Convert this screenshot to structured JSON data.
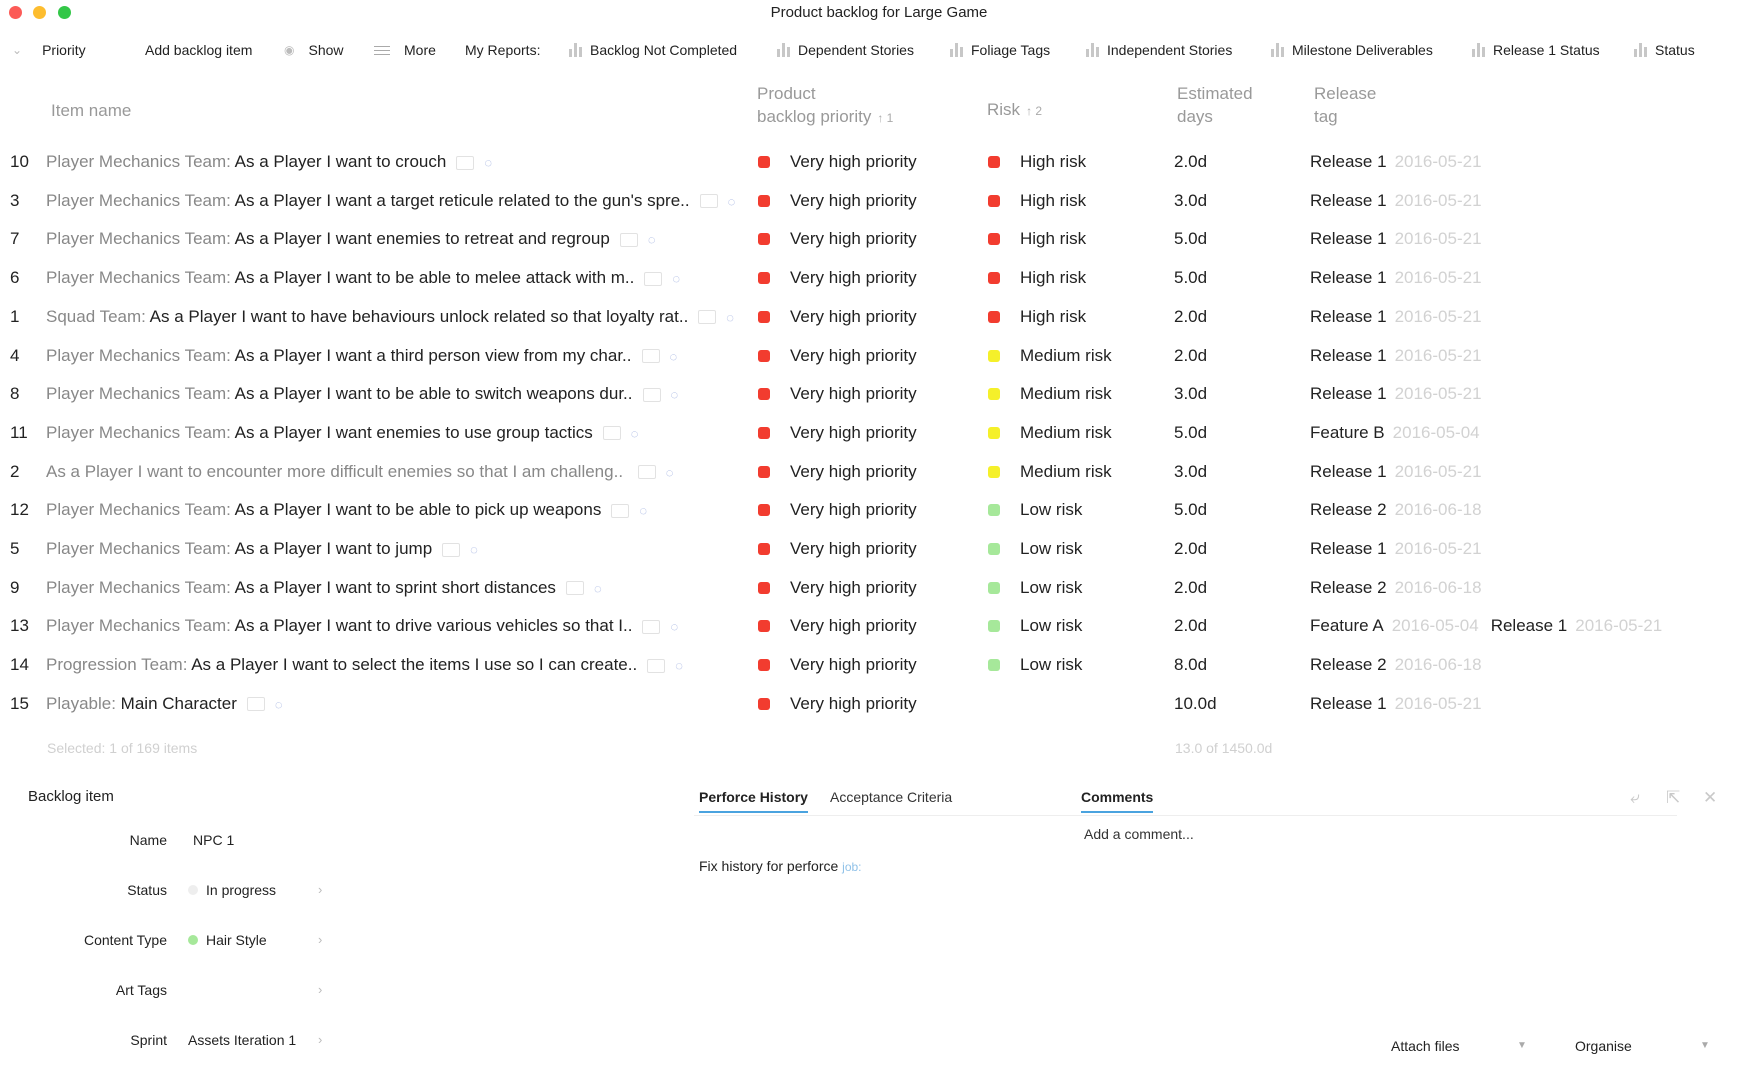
{
  "window": {
    "title": "Product backlog for Large Game"
  },
  "toolbar": {
    "priority": "Priority",
    "add": "Add backlog item",
    "show": "Show",
    "more": "More",
    "reports_label": "My Reports:",
    "reports": [
      "Backlog Not Completed",
      "Dependent Stories",
      "Foliage Tags",
      "Independent Stories",
      "Milestone Deliverables",
      "Release 1 Status",
      "Status"
    ]
  },
  "table": {
    "headers": {
      "item": "Item name",
      "priority_l1": "Product",
      "priority_l2": "backlog priority",
      "priority_sort": "↑ 1",
      "risk": "Risk",
      "risk_sort": "↑ 2",
      "est_l1": "Estimated",
      "est_l2": "days",
      "rel_l1": "Release",
      "rel_l2": "tag"
    },
    "rows": [
      {
        "num": "10",
        "team": "Player Mechanics Team:",
        "text": "As a Player I want to crouch",
        "priority": "Very high priority",
        "priority_color": "#f23c2f",
        "risk": "High risk",
        "risk_color": "#f23c2f",
        "est": "2.0d",
        "release": "Release 1",
        "date": "2016-05-21",
        "release2": "",
        "date2": ""
      },
      {
        "num": "3",
        "team": "Player Mechanics Team:",
        "text": "As a Player I want a target reticule related to the gun's spre..",
        "priority": "Very high priority",
        "priority_color": "#f23c2f",
        "risk": "High risk",
        "risk_color": "#f23c2f",
        "est": "3.0d",
        "release": "Release 1",
        "date": "2016-05-21",
        "release2": "",
        "date2": ""
      },
      {
        "num": "7",
        "team": "Player Mechanics Team:",
        "text": "As a Player I want enemies to retreat and regroup",
        "priority": "Very high priority",
        "priority_color": "#f23c2f",
        "risk": "High risk",
        "risk_color": "#f23c2f",
        "est": "5.0d",
        "release": "Release 1",
        "date": "2016-05-21",
        "release2": "",
        "date2": ""
      },
      {
        "num": "6",
        "team": "Player Mechanics Team:",
        "text": "As a Player I want to be able to melee attack with m..",
        "priority": "Very high priority",
        "priority_color": "#f23c2f",
        "risk": "High risk",
        "risk_color": "#f23c2f",
        "est": "5.0d",
        "release": "Release 1",
        "date": "2016-05-21",
        "release2": "",
        "date2": ""
      },
      {
        "num": "1",
        "team": "Squad Team:",
        "text": "As a Player I want to have behaviours unlock related so that loyalty rat..",
        "priority": "Very high priority",
        "priority_color": "#f23c2f",
        "risk": "High risk",
        "risk_color": "#f23c2f",
        "est": "2.0d",
        "release": "Release 1",
        "date": "2016-05-21",
        "release2": "",
        "date2": ""
      },
      {
        "num": "4",
        "team": "Player Mechanics Team:",
        "text": "As a Player I want a third person view from my char..",
        "priority": "Very high priority",
        "priority_color": "#f23c2f",
        "risk": "Medium risk",
        "risk_color": "#f5f02a",
        "est": "2.0d",
        "release": "Release 1",
        "date": "2016-05-21",
        "release2": "",
        "date2": ""
      },
      {
        "num": "8",
        "team": "Player Mechanics Team:",
        "text": "As a Player I want to be able to switch weapons dur..",
        "priority": "Very high priority",
        "priority_color": "#f23c2f",
        "risk": "Medium risk",
        "risk_color": "#f5f02a",
        "est": "3.0d",
        "release": "Release 1",
        "date": "2016-05-21",
        "release2": "",
        "date2": ""
      },
      {
        "num": "11",
        "team": "Player Mechanics Team:",
        "text": "As a Player I want enemies to use group tactics",
        "priority": "Very high priority",
        "priority_color": "#f23c2f",
        "risk": "Medium risk",
        "risk_color": "#f5f02a",
        "est": "5.0d",
        "release": "Feature B",
        "date": "2016-05-04",
        "release2": "",
        "date2": ""
      },
      {
        "num": "2",
        "team": "As a Player I want to encounter more difficult enemies so that I am challeng..",
        "text": "",
        "priority": "Very high priority",
        "priority_color": "#f23c2f",
        "risk": "Medium risk",
        "risk_color": "#f5f02a",
        "est": "3.0d",
        "release": "Release 1",
        "date": "2016-05-21",
        "release2": "",
        "date2": ""
      },
      {
        "num": "12",
        "team": "Player Mechanics Team:",
        "text": "As a Player I want to be able to pick up weapons",
        "priority": "Very high priority",
        "priority_color": "#f23c2f",
        "risk": "Low risk",
        "risk_color": "#a6e89a",
        "est": "5.0d",
        "release": "Release 2",
        "date": "2016-06-18",
        "release2": "",
        "date2": ""
      },
      {
        "num": "5",
        "team": "Player Mechanics Team:",
        "text": "As a Player I want to jump",
        "priority": "Very high priority",
        "priority_color": "#f23c2f",
        "risk": "Low risk",
        "risk_color": "#a6e89a",
        "est": "2.0d",
        "release": "Release 1",
        "date": "2016-05-21",
        "release2": "",
        "date2": ""
      },
      {
        "num": "9",
        "team": "Player Mechanics Team:",
        "text": "As a Player I want to sprint short distances",
        "priority": "Very high priority",
        "priority_color": "#f23c2f",
        "risk": "Low risk",
        "risk_color": "#a6e89a",
        "est": "2.0d",
        "release": "Release 2",
        "date": "2016-06-18",
        "release2": "",
        "date2": ""
      },
      {
        "num": "13",
        "team": "Player Mechanics Team:",
        "text": "As a Player I want to drive various vehicles so that I..",
        "priority": "Very high priority",
        "priority_color": "#f23c2f",
        "risk": "Low risk",
        "risk_color": "#a6e89a",
        "est": "2.0d",
        "release": "Feature A",
        "date": "2016-05-04",
        "release2": "Release 1",
        "date2": "2016-05-21"
      },
      {
        "num": "14",
        "team": "Progression Team:",
        "text": "As a Player I want to select the items I use so I can create..",
        "priority": "Very high priority",
        "priority_color": "#f23c2f",
        "risk": "Low risk",
        "risk_color": "#a6e89a",
        "est": "8.0d",
        "release": "Release 2",
        "date": "2016-06-18",
        "release2": "",
        "date2": ""
      },
      {
        "num": "15",
        "team": "Playable:",
        "text": "Main Character",
        "priority": "Very high priority",
        "priority_color": "#f23c2f",
        "risk": "",
        "risk_color": "",
        "est": "10.0d",
        "release": "Release 1",
        "date": "2016-05-21",
        "release2": "",
        "date2": ""
      }
    ],
    "footer_selected": "Selected: 1 of 169 items",
    "footer_total": "13.0 of 1450.0d"
  },
  "detail": {
    "title": "Backlog item",
    "fields": [
      {
        "label": "Name",
        "value": "NPC 1"
      },
      {
        "label": "Status",
        "value": "In progress"
      },
      {
        "label": "Content Type",
        "value": "Hair Style"
      },
      {
        "label": "Art Tags",
        "value": ""
      },
      {
        "label": "Sprint",
        "value": "Assets Iteration 1"
      }
    ],
    "tabs": [
      "Perforce History",
      "Acceptance Criteria"
    ],
    "history_text": "Fix history for perforce",
    "history_link": "job:",
    "comments_tab": "Comments",
    "comment_placeholder": "Add a comment...",
    "attach": "Attach files",
    "organise": "Organise"
  }
}
